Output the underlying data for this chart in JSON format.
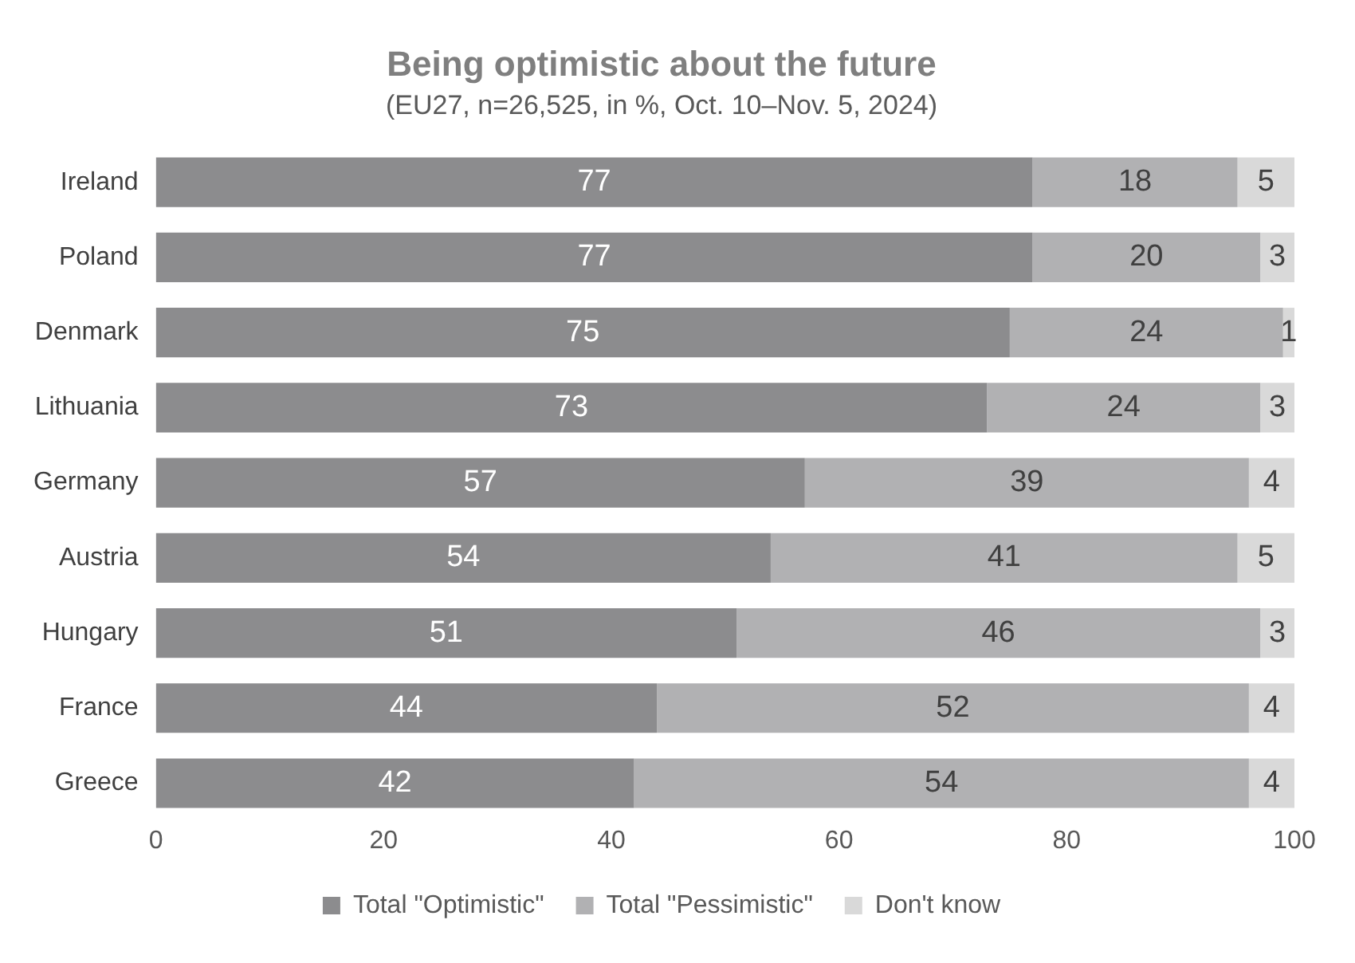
{
  "chart_data": {
    "type": "bar",
    "orientation": "horizontal",
    "stacked": true,
    "title": "Being optimistic about the future",
    "subtitle": "(EU27, n=26,525, in %, Oct. 10–Nov. 5, 2024)",
    "categories": [
      "Ireland",
      "Poland",
      "Denmark",
      "Lithuania",
      "Germany",
      "Austria",
      "Hungary",
      "France",
      "Greece"
    ],
    "series": [
      {
        "name": "Total \"Optimistic\"",
        "color": "#8c8c8e",
        "values": [
          77,
          77,
          75,
          73,
          57,
          54,
          51,
          44,
          42
        ]
      },
      {
        "name": "Total \"Pessimistic\"",
        "color": "#b1b1b3",
        "values": [
          18,
          20,
          24,
          24,
          39,
          41,
          46,
          52,
          54
        ]
      },
      {
        "name": "Don't know",
        "color": "#d9d9d9",
        "values": [
          5,
          3,
          1,
          3,
          4,
          5,
          3,
          4,
          4
        ]
      }
    ],
    "xlim": [
      0,
      100
    ],
    "xticks": [
      0,
      20,
      40,
      60,
      80,
      100
    ],
    "grid": false,
    "legend": "bottom",
    "data_labels": true
  }
}
